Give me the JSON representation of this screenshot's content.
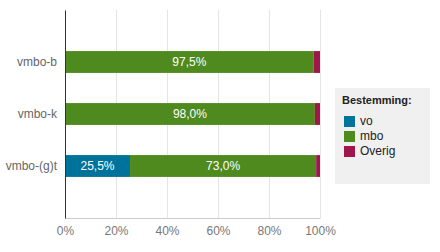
{
  "chart_data": {
    "type": "bar",
    "orientation": "horizontal",
    "stacked": true,
    "data_labels": true,
    "grid": true,
    "legend": "right",
    "legend_title": "Bestemming:",
    "categories": [
      "vmbo-b",
      "vmbo-k",
      "vmbo-(g)t"
    ],
    "xlim": [
      0,
      100
    ],
    "xticks": [
      {
        "value": 0,
        "label": "0%"
      },
      {
        "value": 20,
        "label": "20%"
      },
      {
        "value": 40,
        "label": "40%"
      },
      {
        "value": 60,
        "label": "60%"
      },
      {
        "value": 80,
        "label": "80%"
      },
      {
        "value": 100,
        "label": "100%"
      }
    ],
    "series": [
      {
        "name": "vo",
        "color": "#00739a",
        "values": [
          0,
          0,
          25.5
        ],
        "value_labels": [
          null,
          null,
          "25,5%"
        ]
      },
      {
        "name": "mbo",
        "color": "#4e8a1e",
        "values": [
          97.5,
          98.0,
          73.0
        ],
        "value_labels": [
          "97,5%",
          "98,0%",
          "73,0%"
        ]
      },
      {
        "name": "Overig",
        "color": "#a0154a",
        "values": [
          2.5,
          2.0,
          1.5
        ],
        "value_labels": [
          null,
          null,
          null
        ]
      }
    ]
  }
}
